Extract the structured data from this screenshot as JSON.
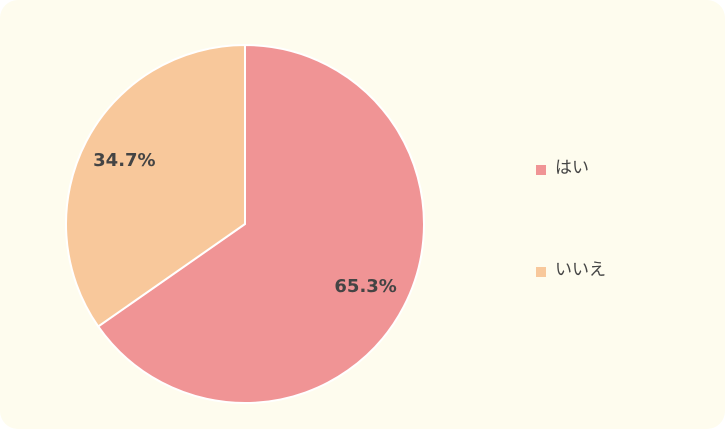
{
  "chart_data": {
    "type": "pie",
    "categories": [
      "はい",
      "いいえ"
    ],
    "values": [
      65.3,
      34.7
    ],
    "value_labels": [
      "65.3%",
      "34.7%"
    ],
    "colors": [
      "#f09495",
      "#f8c89b"
    ]
  }
}
